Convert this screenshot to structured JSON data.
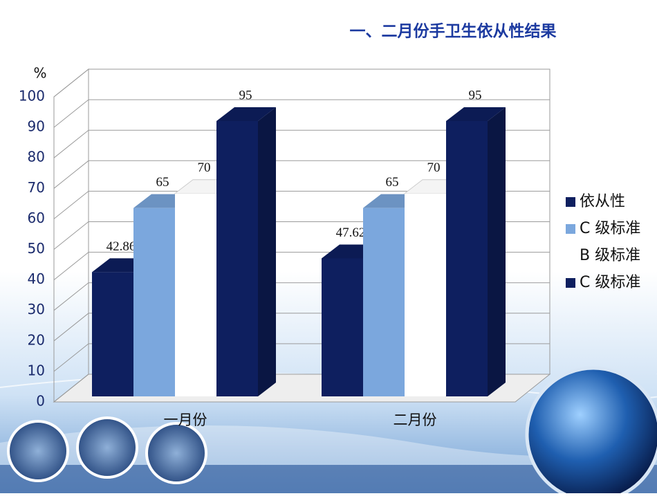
{
  "chart_data": {
    "type": "bar3d",
    "title": "一、二月份手卫生依从性结果",
    "y_label": "%",
    "categories": [
      "一月份",
      "二月份"
    ],
    "series": [
      {
        "name": "依从性",
        "color": "#0e1f5f",
        "values": [
          42.86,
          47.62
        ]
      },
      {
        "name": "C 级标准",
        "color": "#7ba7dd",
        "values": [
          65,
          65
        ]
      },
      {
        "name": "B 级标准",
        "color": "#ffffff",
        "values": [
          70,
          70
        ]
      },
      {
        "name": "C 级标准",
        "color": "#0e1f5f",
        "values": [
          95,
          95
        ]
      }
    ],
    "ylim": [
      0,
      100
    ],
    "yticks": [
      0,
      10,
      20,
      30,
      40,
      50,
      60,
      70,
      80,
      90,
      100
    ],
    "grid": true,
    "legend": "right"
  }
}
